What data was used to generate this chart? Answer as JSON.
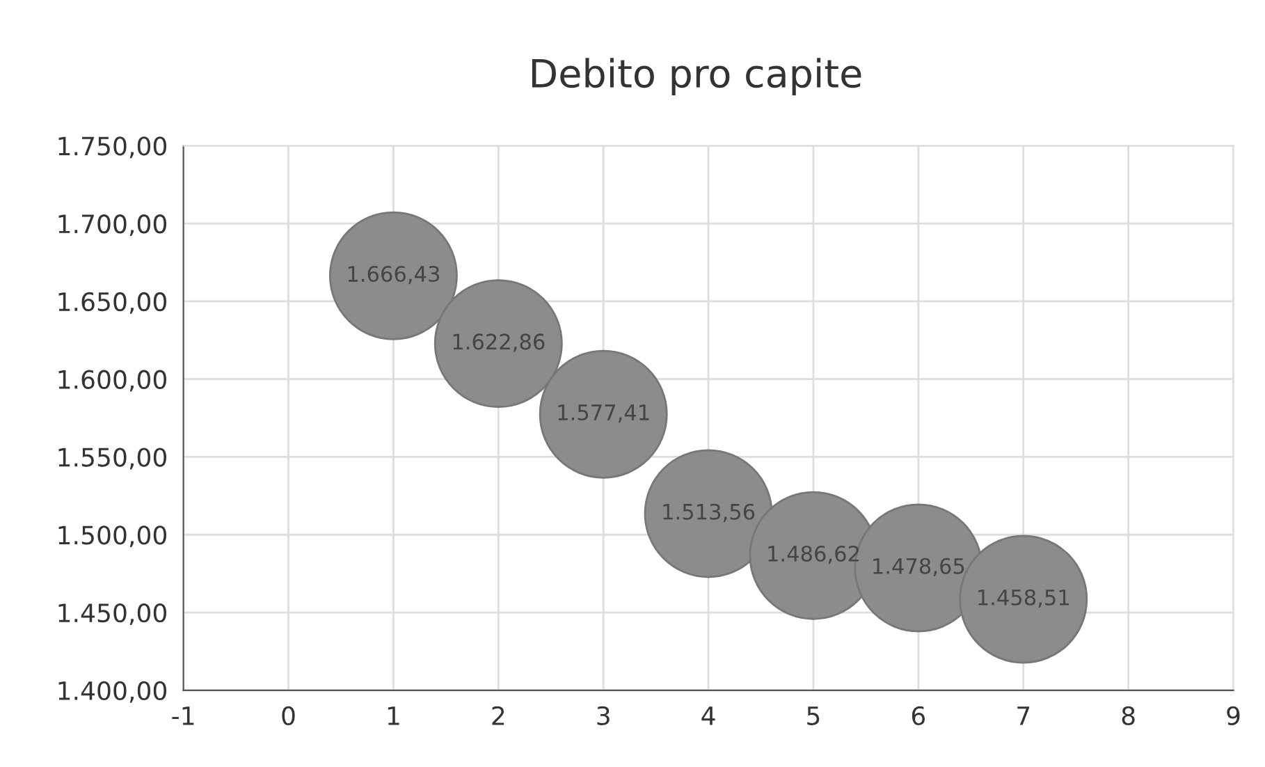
{
  "chart_data": {
    "type": "bubble",
    "title": "Debito pro capite",
    "x": [
      1,
      2,
      3,
      4,
      5,
      6,
      7
    ],
    "values": [
      1666.43,
      1622.86,
      1577.41,
      1513.56,
      1486.62,
      1478.65,
      1458.51
    ],
    "sizes": [
      1,
      1,
      1,
      1,
      1,
      1,
      1
    ],
    "value_labels": [
      "1.666,43",
      "1.622,86",
      "1.577,41",
      "1.513,56",
      "1.486,62",
      "1.478,65",
      "1.458,51"
    ],
    "color": "#8c8c8c",
    "xlim": [
      -1,
      9
    ],
    "xticks": [
      -1,
      0,
      1,
      2,
      3,
      4,
      5,
      6,
      7,
      8,
      9
    ],
    "ylim": [
      1400,
      1750
    ],
    "yticks": [
      {
        "value": 1400,
        "label": "1.400,00"
      },
      {
        "value": 1450,
        "label": "1.450,00"
      },
      {
        "value": 1500,
        "label": "1.500,00"
      },
      {
        "value": 1550,
        "label": "1.550,00"
      },
      {
        "value": 1600,
        "label": "1.600,00"
      },
      {
        "value": 1650,
        "label": "1.650,00"
      },
      {
        "value": 1700,
        "label": "1.700,00"
      },
      {
        "value": 1750,
        "label": "1.750,00"
      }
    ],
    "grid": true,
    "legend": false
  }
}
